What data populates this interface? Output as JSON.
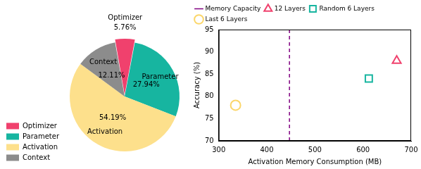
{
  "chart_data": [
    {
      "type": "pie",
      "categories": [
        "Optimizer",
        "Parameter",
        "Activation",
        "Context"
      ],
      "values": [
        5.76,
        27.94,
        54.19,
        12.11
      ],
      "value_labels": [
        "5.76%",
        "27.94%",
        "54.19%",
        "12.11%"
      ],
      "colors": [
        "#f0416d",
        "#17b5a0",
        "#fde08c",
        "#8c8c8c"
      ],
      "data_labels": true,
      "legend": "lower left"
    },
    {
      "type": "scatter",
      "xlabel": "Activation Memory Consumption (MB)",
      "ylabel": "Accuracy (%)",
      "xlim": [
        300,
        700
      ],
      "xticks": [
        300,
        400,
        500,
        600,
        700
      ],
      "ylim": [
        70,
        95
      ],
      "yticks": [
        70,
        75,
        80,
        85,
        90,
        95
      ],
      "grid": false,
      "legend": "top",
      "series": [
        {
          "name": "Memory Capacity",
          "type": "line",
          "line_style": "dashed",
          "color": "#800080",
          "x": [
            447,
            447
          ],
          "values": [
            70,
            95
          ]
        },
        {
          "name": "12 Layers",
          "type": "scatter",
          "marker": "triangle",
          "color": "#f0416d",
          "x": [
            670
          ],
          "values": [
            88
          ]
        },
        {
          "name": "Random 6 Layers",
          "type": "scatter",
          "marker": "square",
          "color": "#17b5a0",
          "x": [
            612
          ],
          "values": [
            84
          ]
        },
        {
          "name": "Last 6 Layers",
          "type": "scatter",
          "marker": "circle",
          "color": "#fbd66a",
          "x": [
            335
          ],
          "values": [
            78
          ]
        }
      ]
    }
  ]
}
